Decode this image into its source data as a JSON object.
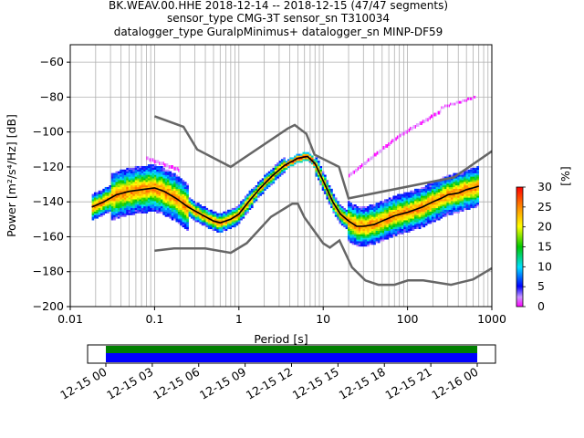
{
  "title": {
    "line1": "BK.WEAV.00.HHE   2018-12-14 -- 2018-12-15  (47/47 segments)",
    "line2": "sensor_type CMG-3T sensor_sn T310034",
    "line3": "datalogger_type GuralpMinimus+ datalogger_sn MINP-DF59"
  },
  "chart_data": [
    {
      "type": "heatmap",
      "title": "BK.WEAV.00.HHE   2018-12-14 -- 2018-12-15  (47/47 segments)",
      "xlabel": "Period [s]",
      "ylabel": "Power [m²/s⁴/Hz] [dB]",
      "xscale": "log",
      "xlim": [
        0.01,
        1000
      ],
      "ylim": [
        -200,
        -50
      ],
      "x_ticks": [
        "0.01",
        "0.1",
        "1",
        "10",
        "100",
        "1000"
      ],
      "y_ticks": [
        -60,
        -80,
        -100,
        -120,
        -140,
        -160,
        -180,
        -200
      ],
      "grid": true,
      "colorbar": {
        "label": "[%]",
        "range": [
          0,
          30
        ],
        "ticks": [
          0,
          5,
          10,
          15,
          20,
          25,
          30
        ]
      },
      "series": [
        {
          "name": "",
          "color": "#000000",
          "x": [
            0.018,
            0.025,
            0.035,
            0.05,
            0.07,
            0.1,
            0.13,
            0.18,
            0.25,
            0.35,
            0.5,
            0.6,
            0.8,
            1.0,
            1.3,
            1.8,
            2.5,
            3.5,
            5.0,
            6.5,
            8.0,
            10,
            13,
            16,
            20,
            25,
            30,
            40,
            50,
            70,
            100,
            150,
            200,
            250,
            300,
            400,
            500,
            600,
            700
          ],
          "y": [
            -143,
            -140,
            -136,
            -134,
            -133,
            -132,
            -134,
            -138,
            -143,
            -147,
            -151,
            -152,
            -150,
            -147,
            -140,
            -132,
            -125,
            -119,
            -115,
            -114,
            -118,
            -128,
            -140,
            -147,
            -151,
            -154,
            -154,
            -153,
            -151,
            -148,
            -146,
            -143,
            -140,
            -138,
            -136,
            -135,
            -133,
            -132,
            -131
          ]
        }
      ],
      "noise_models": [
        {
          "name": "",
          "color": "#666666",
          "x": [
            0.1,
            0.22,
            0.32,
            0.8,
            3.8,
            4.6,
            6.3,
            7.9,
            15.4,
            20,
            354.8,
            1000
          ],
          "y": [
            -91,
            -97,
            -110,
            -120,
            -98,
            -96,
            -101,
            -113,
            -120,
            -138,
            -126,
            -111
          ]
        },
        {
          "name": "",
          "color": "#666666",
          "x": [
            0.1,
            0.17,
            0.4,
            0.8,
            1.24,
            2.4,
            4.3,
            5.0,
            6.0,
            10.0,
            12.0,
            15.6,
            21.9,
            31.6,
            45,
            70,
            101,
            154,
            328,
            600,
            1000
          ],
          "y": [
            -168,
            -166.7,
            -166.7,
            -169.2,
            -163.7,
            -148.6,
            -141.1,
            -141.1,
            -149,
            -163.8,
            -166.2,
            -162.1,
            -177.5,
            -185,
            -187.5,
            -187.5,
            -185,
            -185,
            -187.5,
            -184.4,
            -178
          ]
        }
      ]
    },
    {
      "type": "bar",
      "title": "",
      "xlabel": "",
      "ylabel": "",
      "orientation": "horizontal",
      "x_ticks": [
        "12-15 00",
        "12-15 03",
        "12-15 06",
        "12-15 09",
        "12-15 12",
        "12-15 15",
        "12-15 18",
        "12-15 21",
        "12-16 00"
      ],
      "series": [
        {
          "name": "",
          "color": "#008000",
          "start": "12-15 00",
          "end": "12-16 00"
        },
        {
          "name": "",
          "color": "#0000ff",
          "start": "12-15 00",
          "end": "12-16 00"
        }
      ]
    }
  ]
}
